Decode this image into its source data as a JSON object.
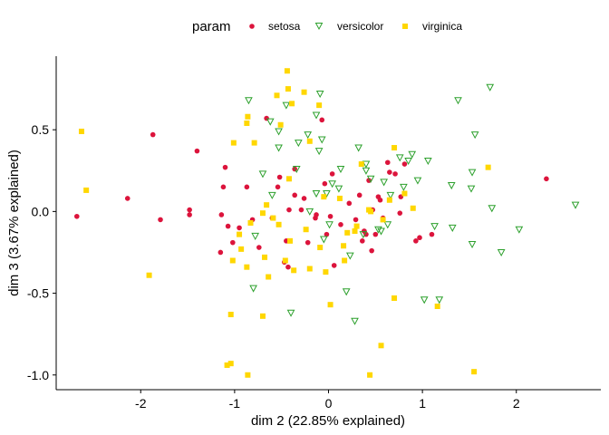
{
  "chart_data": {
    "type": "scatter",
    "title": "",
    "xlabel": "dim 2 (22.85% explained)",
    "ylabel": "dim 3 (3.67% explained)",
    "xlim": [
      -2.9,
      2.9
    ],
    "ylim": [
      -1.09,
      0.95
    ],
    "xticks": [
      -2,
      -1,
      0,
      1,
      2
    ],
    "yticks": [
      -1.0,
      -0.5,
      0.0,
      0.5
    ],
    "xtick_labels": [
      "-2",
      "-1",
      "0",
      "1",
      "2"
    ],
    "ytick_labels": [
      "-1.0",
      "-0.5",
      "0.0",
      "0.5"
    ],
    "grid": false,
    "legend": {
      "title": "param",
      "position": "top",
      "entries": [
        "setosa",
        "versicolor",
        "virginica"
      ]
    },
    "series": [
      {
        "name": "setosa",
        "color": "#DC143C",
        "marker": "circle",
        "points": [
          [
            -2.68,
            -0.03
          ],
          [
            -2.14,
            0.08
          ],
          [
            -1.87,
            0.47
          ],
          [
            -1.79,
            -0.05
          ],
          [
            -1.48,
            0.01
          ],
          [
            -1.48,
            -0.02
          ],
          [
            -1.4,
            0.37
          ],
          [
            -1.14,
            -0.02
          ],
          [
            -1.1,
            0.27
          ],
          [
            -1.12,
            0.15
          ],
          [
            -1.15,
            -0.25
          ],
          [
            -1.07,
            -0.09
          ],
          [
            -1.02,
            -0.19
          ],
          [
            -0.95,
            -0.1
          ],
          [
            -0.87,
            0.15
          ],
          [
            -0.81,
            -0.05
          ],
          [
            -0.74,
            -0.22
          ],
          [
            -0.66,
            0.57
          ],
          [
            -0.6,
            -0.04
          ],
          [
            -0.54,
            0.15
          ],
          [
            -0.52,
            0.21
          ],
          [
            -0.47,
            -0.31
          ],
          [
            -0.43,
            -0.34
          ],
          [
            -0.45,
            -0.18
          ],
          [
            -0.42,
            0.01
          ],
          [
            -0.36,
            0.26
          ],
          [
            -0.36,
            0.1
          ],
          [
            -0.29,
            0.01
          ],
          [
            -0.26,
            0.08
          ],
          [
            -0.22,
            -0.19
          ],
          [
            -0.14,
            -0.04
          ],
          [
            -0.13,
            -0.02
          ],
          [
            -0.07,
            0.56
          ],
          [
            -0.04,
            0.17
          ],
          [
            -0.02,
            -0.14
          ],
          [
            0.02,
            -0.03
          ],
          [
            0.04,
            0.23
          ],
          [
            0.06,
            -0.33
          ],
          [
            0.13,
            -0.08
          ],
          [
            0.22,
            0.05
          ],
          [
            0.29,
            -0.05
          ],
          [
            0.33,
            0.1
          ],
          [
            0.38,
            -0.12
          ],
          [
            0.36,
            -0.18
          ],
          [
            0.38,
            -0.12
          ],
          [
            0.4,
            -0.14
          ],
          [
            0.43,
            0.19
          ],
          [
            0.47,
            0.01
          ],
          [
            0.5,
            -0.14
          ],
          [
            0.53,
            0.09
          ],
          [
            0.46,
            -0.24
          ],
          [
            0.55,
            0.07
          ],
          [
            0.58,
            -0.04
          ],
          [
            0.63,
            0.3
          ],
          [
            0.65,
            0.24
          ],
          [
            0.71,
            0.23
          ],
          [
            0.76,
            -0.01
          ],
          [
            0.77,
            0.09
          ],
          [
            0.81,
            0.29
          ],
          [
            0.93,
            -0.18
          ],
          [
            0.97,
            -0.16
          ],
          [
            1.1,
            -0.14
          ],
          [
            2.32,
            0.2
          ]
        ]
      },
      {
        "name": "versicolor",
        "color": "#2CA02C",
        "marker": "triangle-down",
        "points": [
          [
            -0.85,
            0.68
          ],
          [
            -0.8,
            -0.47
          ],
          [
            -0.78,
            -0.15
          ],
          [
            -0.7,
            0.23
          ],
          [
            -0.62,
            0.55
          ],
          [
            -0.6,
            0.1
          ],
          [
            -0.53,
            0.49
          ],
          [
            -0.53,
            0.39
          ],
          [
            -0.45,
            0.65
          ],
          [
            -0.4,
            -0.62
          ],
          [
            -0.34,
            0.26
          ],
          [
            -0.32,
            0.42
          ],
          [
            -0.22,
            0.47
          ],
          [
            -0.09,
            0.72
          ],
          [
            -0.13,
            0.59
          ],
          [
            -0.2,
            0.0
          ],
          [
            -0.13,
            0.11
          ],
          [
            -0.1,
            0.37
          ],
          [
            -0.07,
            0.44
          ],
          [
            -0.05,
            -0.17
          ],
          [
            -0.02,
            0.11
          ],
          [
            0.01,
            -0.08
          ],
          [
            0.04,
            0.17
          ],
          [
            0.11,
            0.14
          ],
          [
            0.13,
            0.26
          ],
          [
            0.19,
            -0.49
          ],
          [
            0.23,
            -0.27
          ],
          [
            0.28,
            -0.67
          ],
          [
            0.32,
            0.39
          ],
          [
            0.37,
            -0.14
          ],
          [
            0.4,
            0.25
          ],
          [
            0.4,
            0.29
          ],
          [
            0.45,
            0.2
          ],
          [
            0.53,
            -0.11
          ],
          [
            0.56,
            -0.12
          ],
          [
            0.59,
            0.18
          ],
          [
            0.63,
            -0.08
          ],
          [
            0.66,
            0.1
          ],
          [
            0.76,
            0.33
          ],
          [
            0.8,
            0.15
          ],
          [
            0.85,
            0.31
          ],
          [
            0.89,
            0.35
          ],
          [
            0.95,
            0.19
          ],
          [
            1.02,
            -0.54
          ],
          [
            1.06,
            0.31
          ],
          [
            1.13,
            -0.09
          ],
          [
            1.18,
            -0.54
          ],
          [
            1.31,
            0.16
          ],
          [
            1.32,
            -0.1
          ],
          [
            1.38,
            0.68
          ],
          [
            1.52,
            0.14
          ],
          [
            1.53,
            -0.2
          ],
          [
            1.53,
            0.24
          ],
          [
            1.56,
            0.47
          ],
          [
            1.72,
            0.76
          ],
          [
            1.74,
            0.02
          ],
          [
            1.84,
            -0.25
          ],
          [
            2.03,
            -0.11
          ],
          [
            2.63,
            0.04
          ]
        ]
      },
      {
        "name": "virginica",
        "color": "#FFD700",
        "marker": "square",
        "points": [
          [
            -2.63,
            0.49
          ],
          [
            -2.58,
            0.13
          ],
          [
            -1.91,
            -0.39
          ],
          [
            -1.08,
            -0.94
          ],
          [
            -1.04,
            -0.93
          ],
          [
            -1.04,
            -0.63
          ],
          [
            -1.02,
            -0.3
          ],
          [
            -1.01,
            0.42
          ],
          [
            -0.95,
            -0.14
          ],
          [
            -0.93,
            -0.23
          ],
          [
            -0.87,
            -0.34
          ],
          [
            -0.86,
            0.58
          ],
          [
            -0.87,
            0.54
          ],
          [
            -0.86,
            -1.0
          ],
          [
            -0.83,
            -0.07
          ],
          [
            -0.79,
            0.42
          ],
          [
            -0.7,
            -0.64
          ],
          [
            -0.7,
            -0.01
          ],
          [
            -0.66,
            0.04
          ],
          [
            -0.68,
            -0.28
          ],
          [
            -0.64,
            -0.4
          ],
          [
            -0.59,
            -0.04
          ],
          [
            -0.55,
            0.71
          ],
          [
            -0.53,
            -0.08
          ],
          [
            -0.51,
            0.53
          ],
          [
            -0.46,
            -0.3
          ],
          [
            -0.44,
            0.86
          ],
          [
            -0.43,
            0.75
          ],
          [
            -0.42,
            0.2
          ],
          [
            -0.41,
            -0.18
          ],
          [
            -0.39,
            0.66
          ],
          [
            -0.37,
            -0.36
          ],
          [
            -0.26,
            0.73
          ],
          [
            -0.24,
            -0.11
          ],
          [
            -0.2,
            0.43
          ],
          [
            -0.2,
            -0.35
          ],
          [
            -0.1,
            0.65
          ],
          [
            -0.09,
            -0.22
          ],
          [
            -0.05,
            0.09
          ],
          [
            -0.03,
            -0.37
          ],
          [
            0.02,
            -0.57
          ],
          [
            0.12,
            0.08
          ],
          [
            0.16,
            -0.21
          ],
          [
            0.17,
            -0.3
          ],
          [
            0.2,
            -0.13
          ],
          [
            0.28,
            -0.12
          ],
          [
            0.3,
            -0.09
          ],
          [
            0.35,
            0.29
          ],
          [
            0.43,
            0.01
          ],
          [
            0.45,
            0.0
          ],
          [
            0.44,
            -1.0
          ],
          [
            0.56,
            -0.82
          ],
          [
            0.58,
            -0.05
          ],
          [
            0.65,
            0.07
          ],
          [
            0.7,
            -0.53
          ],
          [
            0.7,
            0.39
          ],
          [
            0.81,
            0.11
          ],
          [
            0.9,
            0.02
          ],
          [
            1.16,
            -0.58
          ],
          [
            1.55,
            -0.98
          ],
          [
            1.7,
            0.27
          ]
        ]
      }
    ]
  }
}
